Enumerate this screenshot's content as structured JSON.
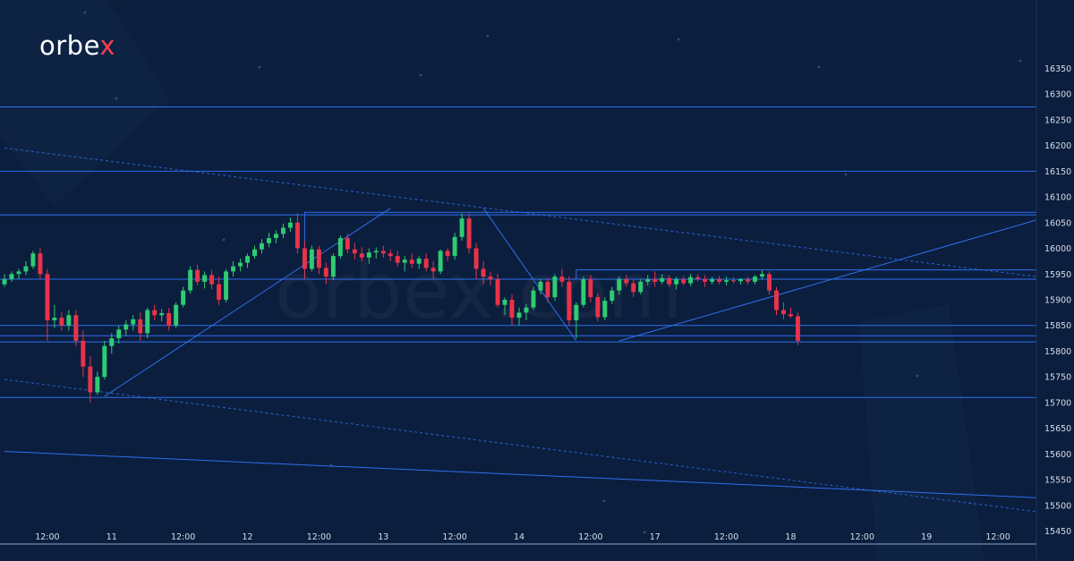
{
  "brand": {
    "logo_text": "orbe",
    "logo_x": "x",
    "watermark": "orbex.com"
  },
  "colors": {
    "background": "#0b1e3d",
    "up": "#2ecc71",
    "down": "#e8334a",
    "line": "#2f6ff0",
    "text": "#d7deea"
  },
  "chart_data": {
    "type": "candlestick",
    "title": "",
    "xlabel": "",
    "ylabel": "",
    "ylim": [
      15425,
      16375
    ],
    "y_ticks": [
      15450,
      15500,
      15550,
      15600,
      15650,
      15700,
      15750,
      15800,
      15850,
      15900,
      15950,
      16000,
      16050,
      16100,
      16150,
      16200,
      16250,
      16300,
      16350
    ],
    "y_tick_labels": [
      "15450",
      "15500",
      "15550",
      "15600",
      "15650",
      "15700",
      "15750",
      "15800",
      "15850",
      "15900",
      "15950",
      "16000",
      "16050",
      "16100",
      "16150",
      "16200",
      "16250",
      "16300",
      "16350"
    ],
    "x_ticks": [
      {
        "label": "12:00",
        "i": 6
      },
      {
        "label": "11",
        "i": 15
      },
      {
        "label": "12:00",
        "i": 25
      },
      {
        "label": "12",
        "i": 34
      },
      {
        "label": "12:00",
        "i": 44
      },
      {
        "label": "13",
        "i": 53
      },
      {
        "label": "12:00",
        "i": 63
      },
      {
        "label": "14",
        "i": 72
      },
      {
        "label": "12:00",
        "i": 82
      },
      {
        "label": "17",
        "i": 91
      },
      {
        "label": "12:00",
        "i": 101
      },
      {
        "label": "18",
        "i": 110
      },
      {
        "label": "12:00",
        "i": 120
      },
      {
        "label": "19",
        "i": 129
      },
      {
        "label": "12:00",
        "i": 139
      }
    ],
    "x_count": 145,
    "candles": [
      [
        15930,
        15950,
        15925,
        15940
      ],
      [
        15940,
        15955,
        15935,
        15950
      ],
      [
        15950,
        15960,
        15940,
        15955
      ],
      [
        15955,
        15975,
        15948,
        15965
      ],
      [
        15965,
        15995,
        15960,
        15990
      ],
      [
        15990,
        16000,
        15940,
        15950
      ],
      [
        15950,
        15960,
        15820,
        15860
      ],
      [
        15860,
        15890,
        15845,
        15865
      ],
      [
        15865,
        15875,
        15840,
        15850
      ],
      [
        15850,
        15880,
        15840,
        15870
      ],
      [
        15870,
        15880,
        15810,
        15820
      ],
      [
        15820,
        15840,
        15750,
        15770
      ],
      [
        15770,
        15790,
        15700,
        15720
      ],
      [
        15720,
        15760,
        15715,
        15750
      ],
      [
        15750,
        15820,
        15745,
        15810
      ],
      [
        15810,
        15835,
        15795,
        15825
      ],
      [
        15825,
        15850,
        15815,
        15842
      ],
      [
        15842,
        15860,
        15830,
        15852
      ],
      [
        15852,
        15870,
        15840,
        15862
      ],
      [
        15862,
        15875,
        15820,
        15835
      ],
      [
        15835,
        15885,
        15825,
        15880
      ],
      [
        15880,
        15890,
        15860,
        15870
      ],
      [
        15870,
        15882,
        15858,
        15874
      ],
      [
        15874,
        15884,
        15840,
        15850
      ],
      [
        15850,
        15895,
        15845,
        15890
      ],
      [
        15890,
        15925,
        15885,
        15918
      ],
      [
        15918,
        15965,
        15912,
        15958
      ],
      [
        15958,
        15968,
        15928,
        15935
      ],
      [
        15935,
        15955,
        15922,
        15948
      ],
      [
        15948,
        15958,
        15920,
        15930
      ],
      [
        15930,
        15945,
        15890,
        15900
      ],
      [
        15900,
        15960,
        15895,
        15955
      ],
      [
        15955,
        15975,
        15945,
        15965
      ],
      [
        15965,
        15980,
        15955,
        15972
      ],
      [
        15972,
        15990,
        15962,
        15985
      ],
      [
        15985,
        16005,
        15980,
        15998
      ],
      [
        15998,
        16018,
        15990,
        16010
      ],
      [
        16010,
        16030,
        16002,
        16020
      ],
      [
        16020,
        16035,
        16010,
        16028
      ],
      [
        16028,
        16048,
        16020,
        16040
      ],
      [
        16040,
        16060,
        16032,
        16050
      ],
      [
        16050,
        16068,
        15990,
        16000
      ],
      [
        16000,
        16015,
        15940,
        15960
      ],
      [
        15960,
        16005,
        15955,
        15998
      ],
      [
        15998,
        16005,
        15950,
        15962
      ],
      [
        15962,
        15972,
        15930,
        15945
      ],
      [
        15945,
        15990,
        15938,
        15985
      ],
      [
        15985,
        16025,
        15980,
        16020
      ],
      [
        16020,
        16028,
        15990,
        15998
      ],
      [
        15998,
        16010,
        15978,
        15990
      ],
      [
        15990,
        16002,
        15975,
        15982
      ],
      [
        15982,
        16000,
        15970,
        15992
      ],
      [
        15992,
        16002,
        15980,
        15995
      ],
      [
        15995,
        16005,
        15982,
        15990
      ],
      [
        15990,
        15998,
        15975,
        15985
      ],
      [
        15985,
        15995,
        15965,
        15972
      ],
      [
        15972,
        15985,
        15955,
        15978
      ],
      [
        15978,
        15990,
        15962,
        15970
      ],
      [
        15970,
        15985,
        15960,
        15980
      ],
      [
        15980,
        15990,
        15955,
        15962
      ],
      [
        15962,
        15975,
        15940,
        15955
      ],
      [
        15955,
        15998,
        15950,
        15995
      ],
      [
        15995,
        16000,
        15975,
        15985
      ],
      [
        15985,
        16030,
        15978,
        16022
      ],
      [
        16022,
        16068,
        16015,
        16058
      ],
      [
        16058,
        16068,
        15990,
        16000
      ],
      [
        16000,
        16010,
        15940,
        15960
      ],
      [
        15960,
        15975,
        15930,
        15945
      ],
      [
        15945,
        15955,
        15928,
        15940
      ],
      [
        15940,
        15950,
        15885,
        15890
      ],
      [
        15890,
        15905,
        15870,
        15900
      ],
      [
        15900,
        15910,
        15850,
        15865
      ],
      [
        15865,
        15885,
        15850,
        15875
      ],
      [
        15875,
        15892,
        15860,
        15885
      ],
      [
        15885,
        15925,
        15880,
        15918
      ],
      [
        15918,
        15940,
        15910,
        15935
      ],
      [
        15935,
        15942,
        15895,
        15905
      ],
      [
        15905,
        15950,
        15898,
        15945
      ],
      [
        15945,
        15960,
        15925,
        15935
      ],
      [
        15935,
        15945,
        15850,
        15860
      ],
      [
        15860,
        15895,
        15825,
        15890
      ],
      [
        15890,
        15945,
        15885,
        15940
      ],
      [
        15940,
        15948,
        15895,
        15905
      ],
      [
        15905,
        15912,
        15858,
        15866
      ],
      [
        15866,
        15905,
        15860,
        15898
      ],
      [
        15898,
        15925,
        15892,
        15918
      ],
      [
        15918,
        15945,
        15910,
        15940
      ],
      [
        15940,
        15948,
        15925,
        15932
      ],
      [
        15932,
        15938,
        15905,
        15915
      ],
      [
        15915,
        15940,
        15910,
        15935
      ],
      [
        15935,
        15948,
        15928,
        15940
      ],
      [
        15940,
        15955,
        15925,
        15935
      ],
      [
        15935,
        15950,
        15930,
        15942
      ],
      [
        15942,
        15948,
        15925,
        15930
      ],
      [
        15930,
        15945,
        15920,
        15940
      ],
      [
        15940,
        15946,
        15928,
        15932
      ],
      [
        15932,
        15950,
        15926,
        15944
      ],
      [
        15944,
        15950,
        15935,
        15940
      ],
      [
        15940,
        15948,
        15925,
        15935
      ],
      [
        15935,
        15945,
        15930,
        15940
      ],
      [
        15940,
        15946,
        15930,
        15935
      ],
      [
        15935,
        15945,
        15928,
        15938
      ],
      [
        15938,
        15944,
        15932,
        15936
      ],
      [
        15936,
        15942,
        15930,
        15940
      ],
      [
        15940,
        15945,
        15930,
        15935
      ],
      [
        15935,
        15948,
        15930,
        15945
      ],
      [
        15945,
        15958,
        15940,
        15950
      ],
      [
        15950,
        15955,
        15910,
        15918
      ],
      [
        15918,
        15925,
        15870,
        15880
      ],
      [
        15880,
        15895,
        15862,
        15872
      ],
      [
        15872,
        15885,
        15865,
        15868
      ],
      [
        15868,
        15875,
        15812,
        15820
      ]
    ],
    "candle_start_index": 0,
    "horizontal_levels": [
      16275,
      16150,
      16065,
      15940,
      15850,
      15830,
      15818,
      15710
    ],
    "boxes": [
      {
        "i0": 42,
        "i1": 145,
        "p0": 16070,
        "p1": 15940
      },
      {
        "i0": 80,
        "i1": 145,
        "p0": 15958,
        "p1": 15940
      }
    ],
    "trendlines": [
      {
        "i0": 14,
        "p0": 15712,
        "i1": 54,
        "p1": 16078,
        "style": "solid"
      },
      {
        "i0": 67,
        "p0": 16078,
        "i1": 80,
        "p1": 15820,
        "style": "solid"
      },
      {
        "i0": 86,
        "p0": 15820,
        "i1": 145,
        "p1": 16055,
        "style": "solid"
      },
      {
        "i0": 0,
        "p0": 16195,
        "i1": 145,
        "p1": 15945,
        "style": "dashed"
      },
      {
        "i0": 0,
        "p0": 15745,
        "i1": 145,
        "p1": 15488,
        "style": "dashed"
      },
      {
        "i0": 0,
        "p0": 15605,
        "i1": 145,
        "p1": 15515,
        "style": "solid"
      }
    ]
  }
}
